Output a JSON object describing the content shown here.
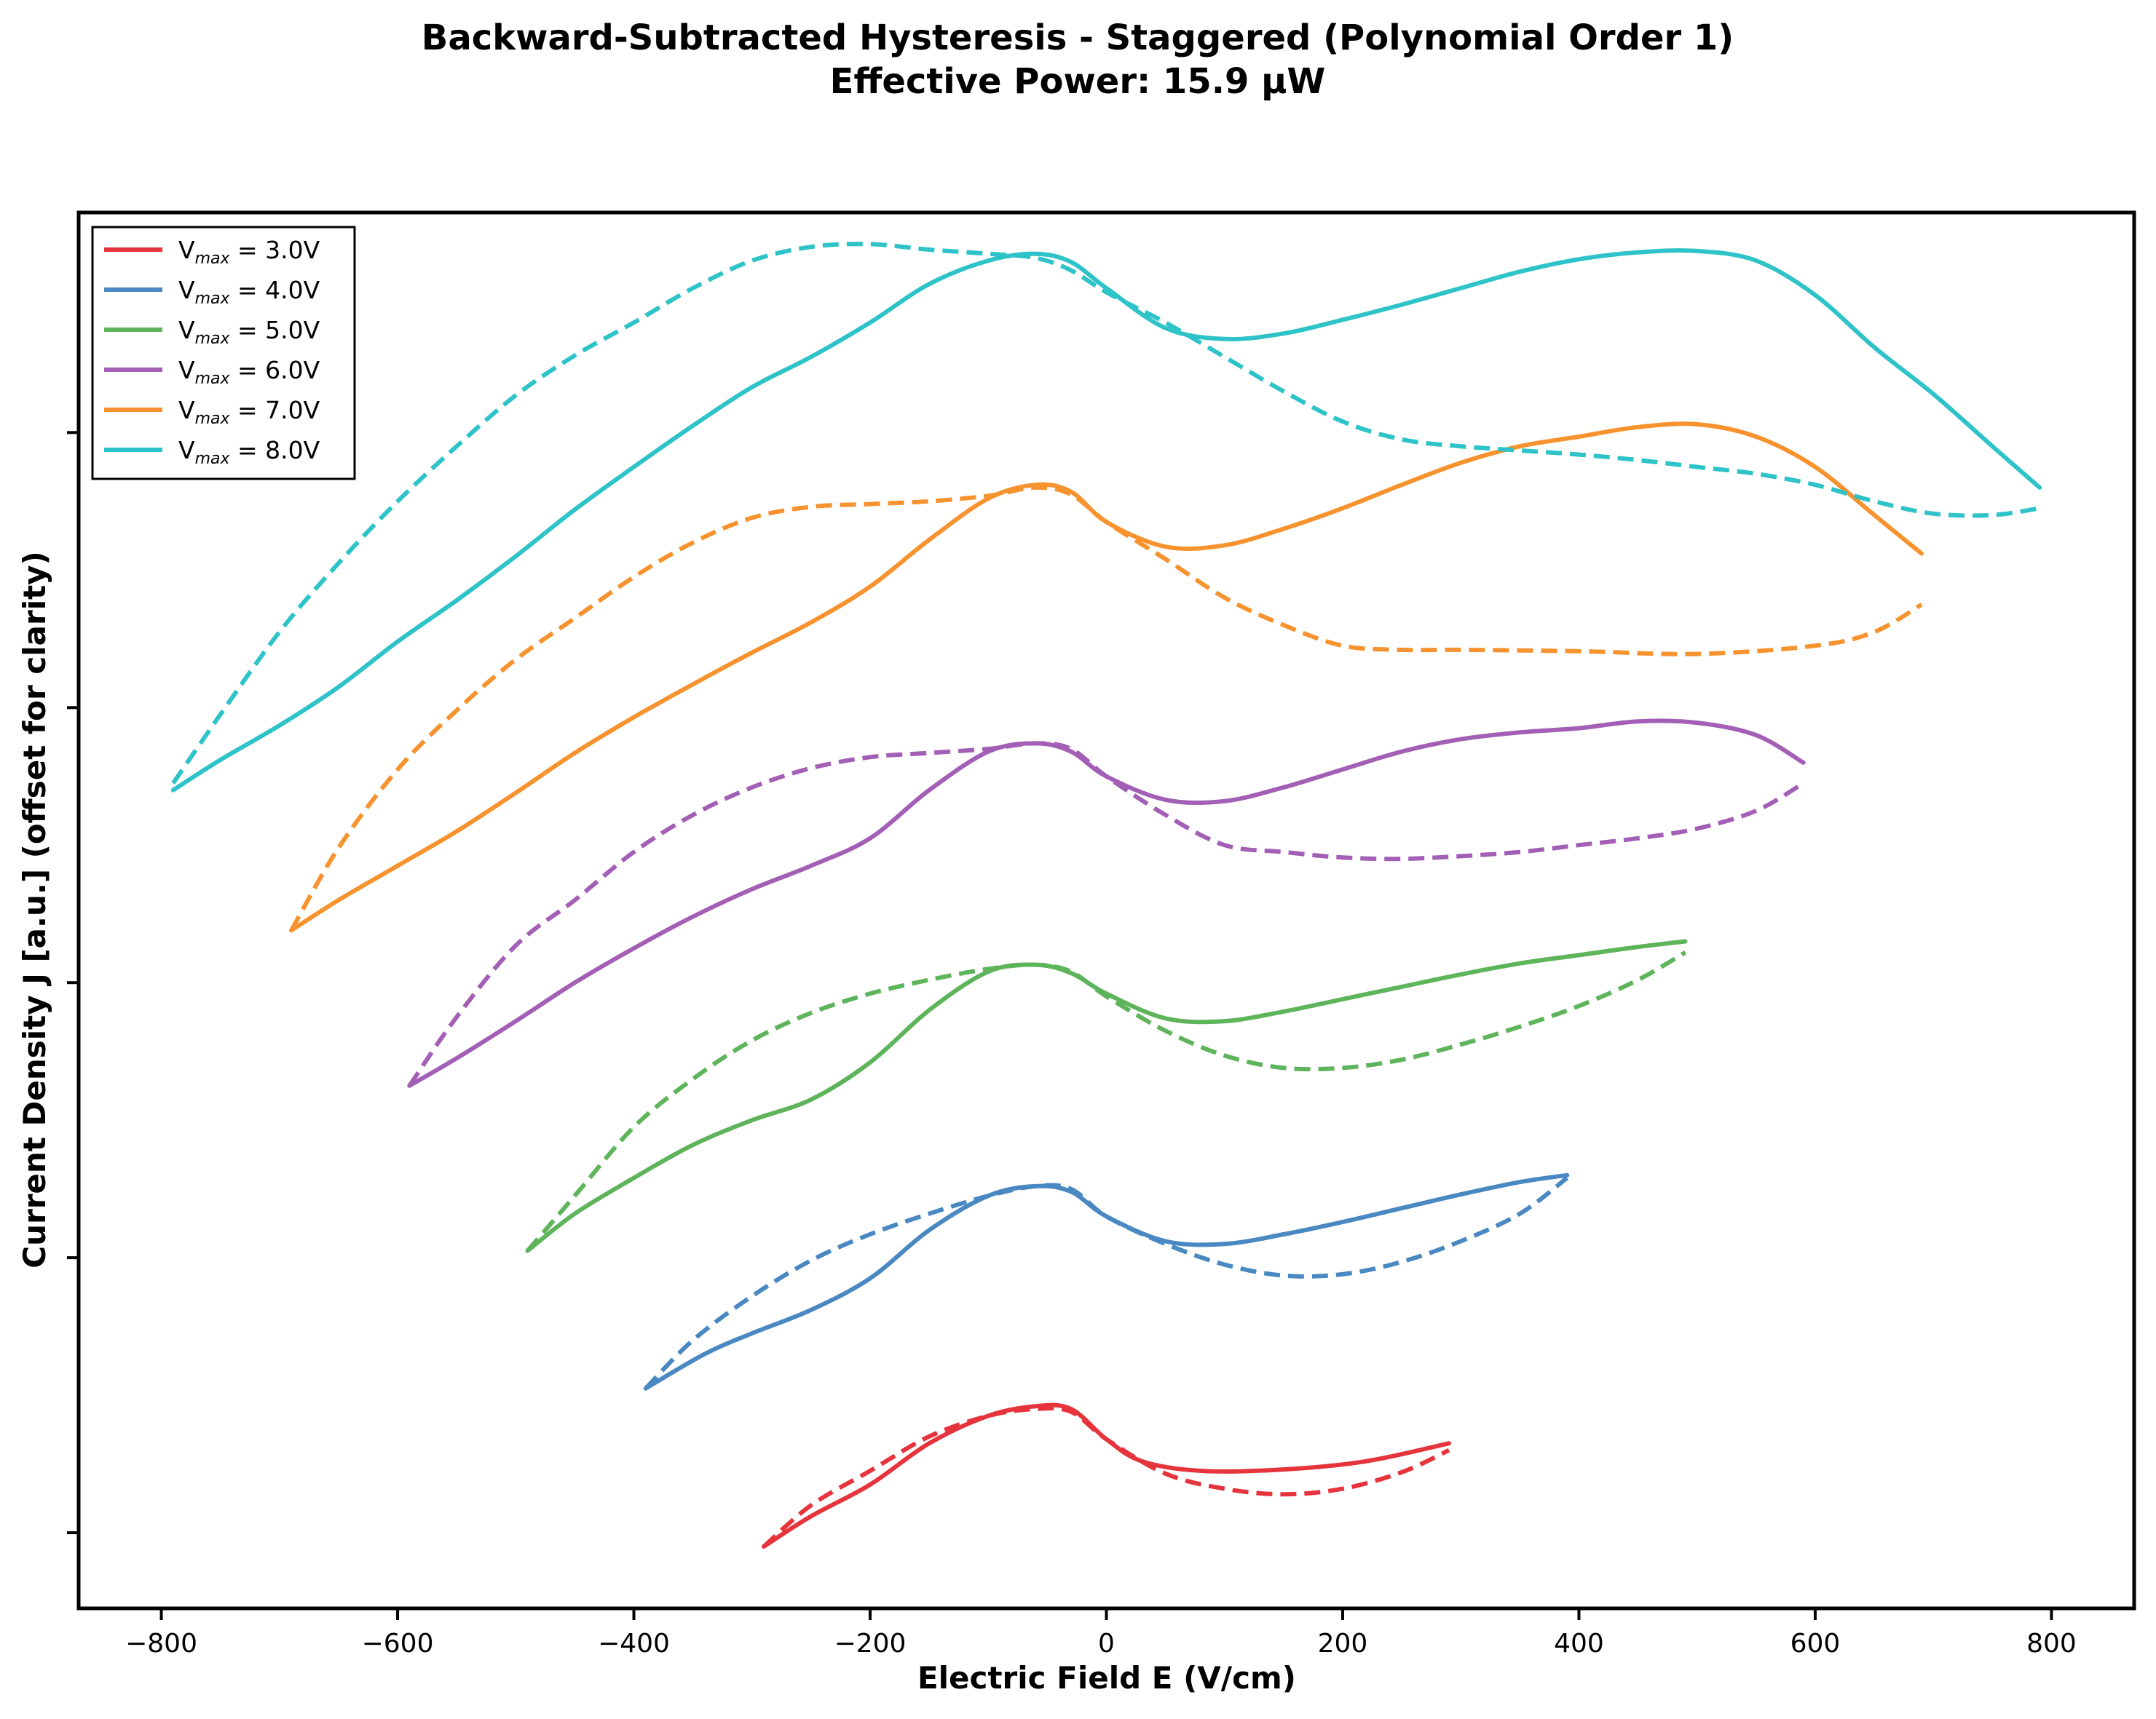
{
  "chart_data": {
    "type": "line",
    "title": "Backward-Subtracted Hysteresis - Staggered (Polynomial Order 1)",
    "subtitle": "Effective Power: 15.9 µW",
    "xlabel": "Electric Field E (V/cm)",
    "ylabel": "Current Density J [a.u.] (offset for clarity)",
    "xlim": [
      -870,
      870
    ],
    "ylim": [
      -0.55,
      9.6
    ],
    "x_ticks": [
      -800,
      -600,
      -400,
      -200,
      0,
      200,
      400,
      600,
      800
    ],
    "x_tick_labels": [
      "−800",
      "−600",
      "−400",
      "−200",
      "0",
      "200",
      "400",
      "600",
      "800"
    ],
    "y_ticks": [
      0,
      2,
      4,
      6,
      8
    ],
    "y_tick_labels_shown": false,
    "grid": false,
    "legend_position": "top-left",
    "line_styles": {
      "forward": "solid",
      "backward": "dashed"
    },
    "series": [
      {
        "name_prefix": "V",
        "name_subscript": "max",
        "name_suffix": " = 3.0V",
        "color": "#e6343c",
        "forward": [
          [
            -290,
            -0.1
          ],
          [
            -250,
            0.12
          ],
          [
            -200,
            0.35
          ],
          [
            -150,
            0.65
          ],
          [
            -100,
            0.85
          ],
          [
            -60,
            0.92
          ],
          [
            -30,
            0.9
          ],
          [
            0,
            0.68
          ],
          [
            30,
            0.52
          ],
          [
            80,
            0.45
          ],
          [
            150,
            0.46
          ],
          [
            220,
            0.52
          ],
          [
            290,
            0.65
          ]
        ],
        "backward": [
          [
            -290,
            -0.1
          ],
          [
            -250,
            0.2
          ],
          [
            -200,
            0.45
          ],
          [
            -150,
            0.7
          ],
          [
            -100,
            0.85
          ],
          [
            -60,
            0.9
          ],
          [
            -30,
            0.88
          ],
          [
            0,
            0.68
          ],
          [
            50,
            0.43
          ],
          [
            100,
            0.32
          ],
          [
            150,
            0.28
          ],
          [
            200,
            0.32
          ],
          [
            250,
            0.44
          ],
          [
            290,
            0.6
          ]
        ]
      },
      {
        "name_prefix": "V",
        "name_subscript": "max",
        "name_suffix": " = 4.0V",
        "color": "#4a88c2",
        "forward": [
          [
            -390,
            1.05
          ],
          [
            -340,
            1.3
          ],
          [
            -300,
            1.45
          ],
          [
            -250,
            1.62
          ],
          [
            -200,
            1.85
          ],
          [
            -150,
            2.2
          ],
          [
            -100,
            2.45
          ],
          [
            -60,
            2.52
          ],
          [
            -30,
            2.48
          ],
          [
            0,
            2.3
          ],
          [
            50,
            2.12
          ],
          [
            100,
            2.1
          ],
          [
            150,
            2.17
          ],
          [
            200,
            2.26
          ],
          [
            250,
            2.36
          ],
          [
            300,
            2.46
          ],
          [
            350,
            2.55
          ],
          [
            390,
            2.6
          ]
        ],
        "backward": [
          [
            -390,
            1.05
          ],
          [
            -350,
            1.4
          ],
          [
            -300,
            1.72
          ],
          [
            -250,
            1.98
          ],
          [
            -200,
            2.17
          ],
          [
            -150,
            2.32
          ],
          [
            -100,
            2.45
          ],
          [
            -60,
            2.52
          ],
          [
            -30,
            2.5
          ],
          [
            0,
            2.3
          ],
          [
            50,
            2.1
          ],
          [
            100,
            1.95
          ],
          [
            150,
            1.87
          ],
          [
            200,
            1.88
          ],
          [
            250,
            1.97
          ],
          [
            300,
            2.12
          ],
          [
            350,
            2.32
          ],
          [
            390,
            2.58
          ]
        ]
      },
      {
        "name_prefix": "V",
        "name_subscript": "max",
        "name_suffix": " = 5.0V",
        "color": "#5eb45b",
        "forward": [
          [
            -490,
            2.05
          ],
          [
            -450,
            2.32
          ],
          [
            -400,
            2.58
          ],
          [
            -350,
            2.82
          ],
          [
            -300,
            3.0
          ],
          [
            -250,
            3.15
          ],
          [
            -200,
            3.42
          ],
          [
            -150,
            3.8
          ],
          [
            -100,
            4.08
          ],
          [
            -60,
            4.13
          ],
          [
            -30,
            4.07
          ],
          [
            0,
            3.92
          ],
          [
            50,
            3.74
          ],
          [
            100,
            3.72
          ],
          [
            150,
            3.79
          ],
          [
            200,
            3.88
          ],
          [
            250,
            3.97
          ],
          [
            300,
            4.06
          ],
          [
            350,
            4.14
          ],
          [
            400,
            4.2
          ],
          [
            450,
            4.26
          ],
          [
            490,
            4.3
          ]
        ],
        "backward": [
          [
            -490,
            2.05
          ],
          [
            -450,
            2.45
          ],
          [
            -400,
            2.95
          ],
          [
            -350,
            3.3
          ],
          [
            -300,
            3.58
          ],
          [
            -250,
            3.78
          ],
          [
            -200,
            3.92
          ],
          [
            -150,
            4.02
          ],
          [
            -100,
            4.1
          ],
          [
            -60,
            4.13
          ],
          [
            -30,
            4.08
          ],
          [
            0,
            3.9
          ],
          [
            50,
            3.65
          ],
          [
            100,
            3.47
          ],
          [
            150,
            3.38
          ],
          [
            200,
            3.38
          ],
          [
            250,
            3.44
          ],
          [
            300,
            3.55
          ],
          [
            350,
            3.68
          ],
          [
            400,
            3.83
          ],
          [
            450,
            4.02
          ],
          [
            490,
            4.22
          ]
        ]
      },
      {
        "name_prefix": "V",
        "name_subscript": "max",
        "name_suffix": " = 6.0V",
        "color": "#a35fb5",
        "forward": [
          [
            -590,
            3.25
          ],
          [
            -550,
            3.45
          ],
          [
            -500,
            3.72
          ],
          [
            -450,
            4.0
          ],
          [
            -400,
            4.25
          ],
          [
            -350,
            4.48
          ],
          [
            -300,
            4.68
          ],
          [
            -250,
            4.85
          ],
          [
            -200,
            5.05
          ],
          [
            -150,
            5.4
          ],
          [
            -100,
            5.68
          ],
          [
            -60,
            5.74
          ],
          [
            -30,
            5.68
          ],
          [
            0,
            5.5
          ],
          [
            50,
            5.33
          ],
          [
            100,
            5.32
          ],
          [
            150,
            5.42
          ],
          [
            200,
            5.55
          ],
          [
            250,
            5.68
          ],
          [
            300,
            5.77
          ],
          [
            350,
            5.82
          ],
          [
            400,
            5.85
          ],
          [
            450,
            5.9
          ],
          [
            500,
            5.89
          ],
          [
            550,
            5.8
          ],
          [
            590,
            5.6
          ]
        ],
        "backward": [
          [
            -590,
            3.25
          ],
          [
            -550,
            3.75
          ],
          [
            -500,
            4.27
          ],
          [
            -450,
            4.6
          ],
          [
            -400,
            4.95
          ],
          [
            -350,
            5.22
          ],
          [
            -300,
            5.42
          ],
          [
            -250,
            5.56
          ],
          [
            -200,
            5.64
          ],
          [
            -150,
            5.67
          ],
          [
            -100,
            5.7
          ],
          [
            -60,
            5.74
          ],
          [
            -30,
            5.7
          ],
          [
            0,
            5.5
          ],
          [
            50,
            5.22
          ],
          [
            100,
            5.0
          ],
          [
            150,
            4.95
          ],
          [
            200,
            4.91
          ],
          [
            250,
            4.9
          ],
          [
            300,
            4.92
          ],
          [
            350,
            4.95
          ],
          [
            400,
            5.0
          ],
          [
            450,
            5.05
          ],
          [
            500,
            5.12
          ],
          [
            550,
            5.25
          ],
          [
            590,
            5.45
          ]
        ]
      },
      {
        "name_prefix": "V",
        "name_subscript": "max",
        "name_suffix": " = 7.0V",
        "color": "#f7932f",
        "forward": [
          [
            -690,
            4.38
          ],
          [
            -650,
            4.6
          ],
          [
            -600,
            4.85
          ],
          [
            -550,
            5.1
          ],
          [
            -500,
            5.38
          ],
          [
            -450,
            5.67
          ],
          [
            -400,
            5.93
          ],
          [
            -350,
            6.17
          ],
          [
            -300,
            6.4
          ],
          [
            -250,
            6.62
          ],
          [
            -200,
            6.88
          ],
          [
            -150,
            7.22
          ],
          [
            -100,
            7.52
          ],
          [
            -60,
            7.62
          ],
          [
            -30,
            7.57
          ],
          [
            0,
            7.35
          ],
          [
            50,
            7.17
          ],
          [
            100,
            7.18
          ],
          [
            150,
            7.3
          ],
          [
            200,
            7.45
          ],
          [
            250,
            7.62
          ],
          [
            300,
            7.78
          ],
          [
            350,
            7.9
          ],
          [
            400,
            7.97
          ],
          [
            450,
            8.04
          ],
          [
            500,
            8.06
          ],
          [
            550,
            7.97
          ],
          [
            600,
            7.75
          ],
          [
            650,
            7.4
          ],
          [
            690,
            7.12
          ]
        ],
        "backward": [
          [
            -690,
            4.38
          ],
          [
            -650,
            4.98
          ],
          [
            -600,
            5.55
          ],
          [
            -550,
            5.98
          ],
          [
            -500,
            6.35
          ],
          [
            -450,
            6.65
          ],
          [
            -400,
            6.95
          ],
          [
            -350,
            7.2
          ],
          [
            -300,
            7.38
          ],
          [
            -250,
            7.46
          ],
          [
            -200,
            7.48
          ],
          [
            -150,
            7.5
          ],
          [
            -100,
            7.54
          ],
          [
            -60,
            7.6
          ],
          [
            -30,
            7.55
          ],
          [
            0,
            7.35
          ],
          [
            50,
            7.08
          ],
          [
            100,
            6.8
          ],
          [
            150,
            6.6
          ],
          [
            200,
            6.45
          ],
          [
            250,
            6.42
          ],
          [
            300,
            6.42
          ],
          [
            400,
            6.41
          ],
          [
            500,
            6.39
          ],
          [
            600,
            6.45
          ],
          [
            650,
            6.55
          ],
          [
            690,
            6.75
          ]
        ]
      },
      {
        "name_prefix": "V",
        "name_subscript": "max",
        "name_suffix": " = 8.0V",
        "color": "#2ec3c8",
        "forward": [
          [
            -790,
            5.4
          ],
          [
            -750,
            5.62
          ],
          [
            -700,
            5.87
          ],
          [
            -650,
            6.15
          ],
          [
            -600,
            6.48
          ],
          [
            -550,
            6.78
          ],
          [
            -500,
            7.1
          ],
          [
            -450,
            7.44
          ],
          [
            -400,
            7.75
          ],
          [
            -350,
            8.05
          ],
          [
            -300,
            8.33
          ],
          [
            -250,
            8.55
          ],
          [
            -200,
            8.8
          ],
          [
            -150,
            9.08
          ],
          [
            -100,
            9.25
          ],
          [
            -60,
            9.3
          ],
          [
            -30,
            9.24
          ],
          [
            0,
            9.05
          ],
          [
            50,
            8.76
          ],
          [
            100,
            8.68
          ],
          [
            150,
            8.72
          ],
          [
            200,
            8.82
          ],
          [
            250,
            8.93
          ],
          [
            300,
            9.05
          ],
          [
            350,
            9.17
          ],
          [
            400,
            9.26
          ],
          [
            450,
            9.31
          ],
          [
            500,
            9.32
          ],
          [
            550,
            9.25
          ],
          [
            600,
            9.0
          ],
          [
            650,
            8.62
          ],
          [
            700,
            8.28
          ],
          [
            750,
            7.9
          ],
          [
            790,
            7.6
          ]
        ],
        "backward": [
          [
            -790,
            5.45
          ],
          [
            -750,
            5.95
          ],
          [
            -700,
            6.55
          ],
          [
            -650,
            7.05
          ],
          [
            -600,
            7.5
          ],
          [
            -550,
            7.9
          ],
          [
            -500,
            8.27
          ],
          [
            -450,
            8.56
          ],
          [
            -400,
            8.8
          ],
          [
            -350,
            9.05
          ],
          [
            -300,
            9.25
          ],
          [
            -250,
            9.35
          ],
          [
            -200,
            9.37
          ],
          [
            -150,
            9.33
          ],
          [
            -100,
            9.3
          ],
          [
            -60,
            9.27
          ],
          [
            -30,
            9.18
          ],
          [
            0,
            9.02
          ],
          [
            50,
            8.8
          ],
          [
            100,
            8.55
          ],
          [
            150,
            8.3
          ],
          [
            200,
            8.08
          ],
          [
            250,
            7.95
          ],
          [
            300,
            7.9
          ],
          [
            350,
            7.87
          ],
          [
            400,
            7.84
          ],
          [
            450,
            7.8
          ],
          [
            500,
            7.75
          ],
          [
            550,
            7.7
          ],
          [
            600,
            7.62
          ],
          [
            650,
            7.5
          ],
          [
            700,
            7.41
          ],
          [
            750,
            7.4
          ],
          [
            790,
            7.45
          ]
        ]
      }
    ]
  }
}
